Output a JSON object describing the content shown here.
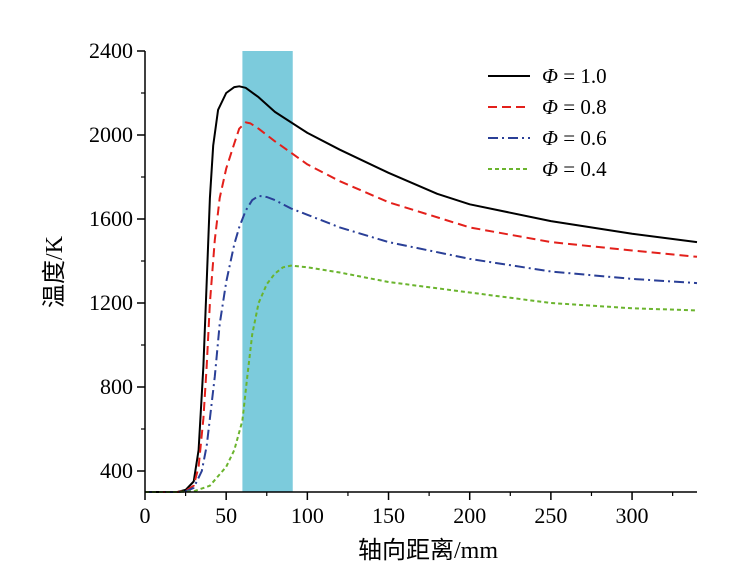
{
  "chart_data": {
    "type": "line",
    "xlabel": "轴向距离/mm",
    "ylabel": "温度/K",
    "xlim": [
      0,
      340
    ],
    "ylim": [
      300,
      2400
    ],
    "xticks": [
      0,
      50,
      100,
      150,
      200,
      250,
      300
    ],
    "yticks": [
      400,
      800,
      1200,
      1600,
      2000,
      2400
    ],
    "grid": false,
    "legend_position": "top-right",
    "highlight_band": {
      "x_start": 60,
      "x_end": 91,
      "color": "#7ccbdc"
    },
    "series": [
      {
        "name": "Φ = 1.0",
        "symbol": "Φ",
        "value_text": " = 1.0",
        "color": "#000000",
        "style": "solid",
        "x": [
          0,
          20,
          25,
          30,
          33,
          36,
          38,
          40,
          42,
          45,
          50,
          55,
          58,
          62,
          70,
          80,
          100,
          120,
          150,
          180,
          200,
          250,
          300,
          340
        ],
        "y": [
          300,
          300,
          310,
          350,
          500,
          900,
          1300,
          1700,
          1950,
          2120,
          2200,
          2228,
          2232,
          2225,
          2180,
          2110,
          2010,
          1930,
          1820,
          1720,
          1670,
          1590,
          1530,
          1490
        ]
      },
      {
        "name": "Φ = 0.8",
        "symbol": "Φ",
        "value_text": " = 0.8",
        "color": "#e3201b",
        "style": "dashed",
        "x": [
          0,
          20,
          25,
          30,
          33,
          36,
          38,
          40,
          43,
          46,
          50,
          55,
          58,
          62,
          65,
          70,
          80,
          100,
          120,
          150,
          200,
          250,
          300,
          340
        ],
        "y": [
          300,
          300,
          305,
          330,
          420,
          650,
          900,
          1200,
          1500,
          1700,
          1840,
          1960,
          2030,
          2060,
          2055,
          2030,
          1970,
          1860,
          1780,
          1680,
          1560,
          1490,
          1450,
          1420
        ]
      },
      {
        "name": "Φ = 0.6",
        "symbol": "Φ",
        "value_text": " = 0.6",
        "color": "#2a3f97",
        "style": "dashdot",
        "x": [
          0,
          20,
          25,
          30,
          35,
          38,
          40,
          43,
          46,
          50,
          55,
          58,
          62,
          66,
          70,
          75,
          80,
          90,
          100,
          120,
          150,
          200,
          250,
          300,
          340
        ],
        "y": [
          300,
          300,
          302,
          320,
          400,
          520,
          650,
          850,
          1100,
          1300,
          1480,
          1560,
          1640,
          1690,
          1710,
          1705,
          1690,
          1650,
          1620,
          1560,
          1490,
          1410,
          1350,
          1315,
          1295
        ]
      },
      {
        "name": "Φ = 0.4",
        "symbol": "Φ",
        "value_text": " = 0.4",
        "color": "#6ab42d",
        "style": "dotted",
        "x": [
          0,
          20,
          30,
          40,
          50,
          55,
          60,
          63,
          66,
          70,
          75,
          80,
          85,
          90,
          100,
          120,
          150,
          200,
          250,
          300,
          340
        ],
        "y": [
          300,
          300,
          303,
          330,
          420,
          500,
          640,
          850,
          1050,
          1200,
          1290,
          1340,
          1370,
          1378,
          1370,
          1345,
          1300,
          1250,
          1200,
          1175,
          1165
        ]
      }
    ]
  }
}
